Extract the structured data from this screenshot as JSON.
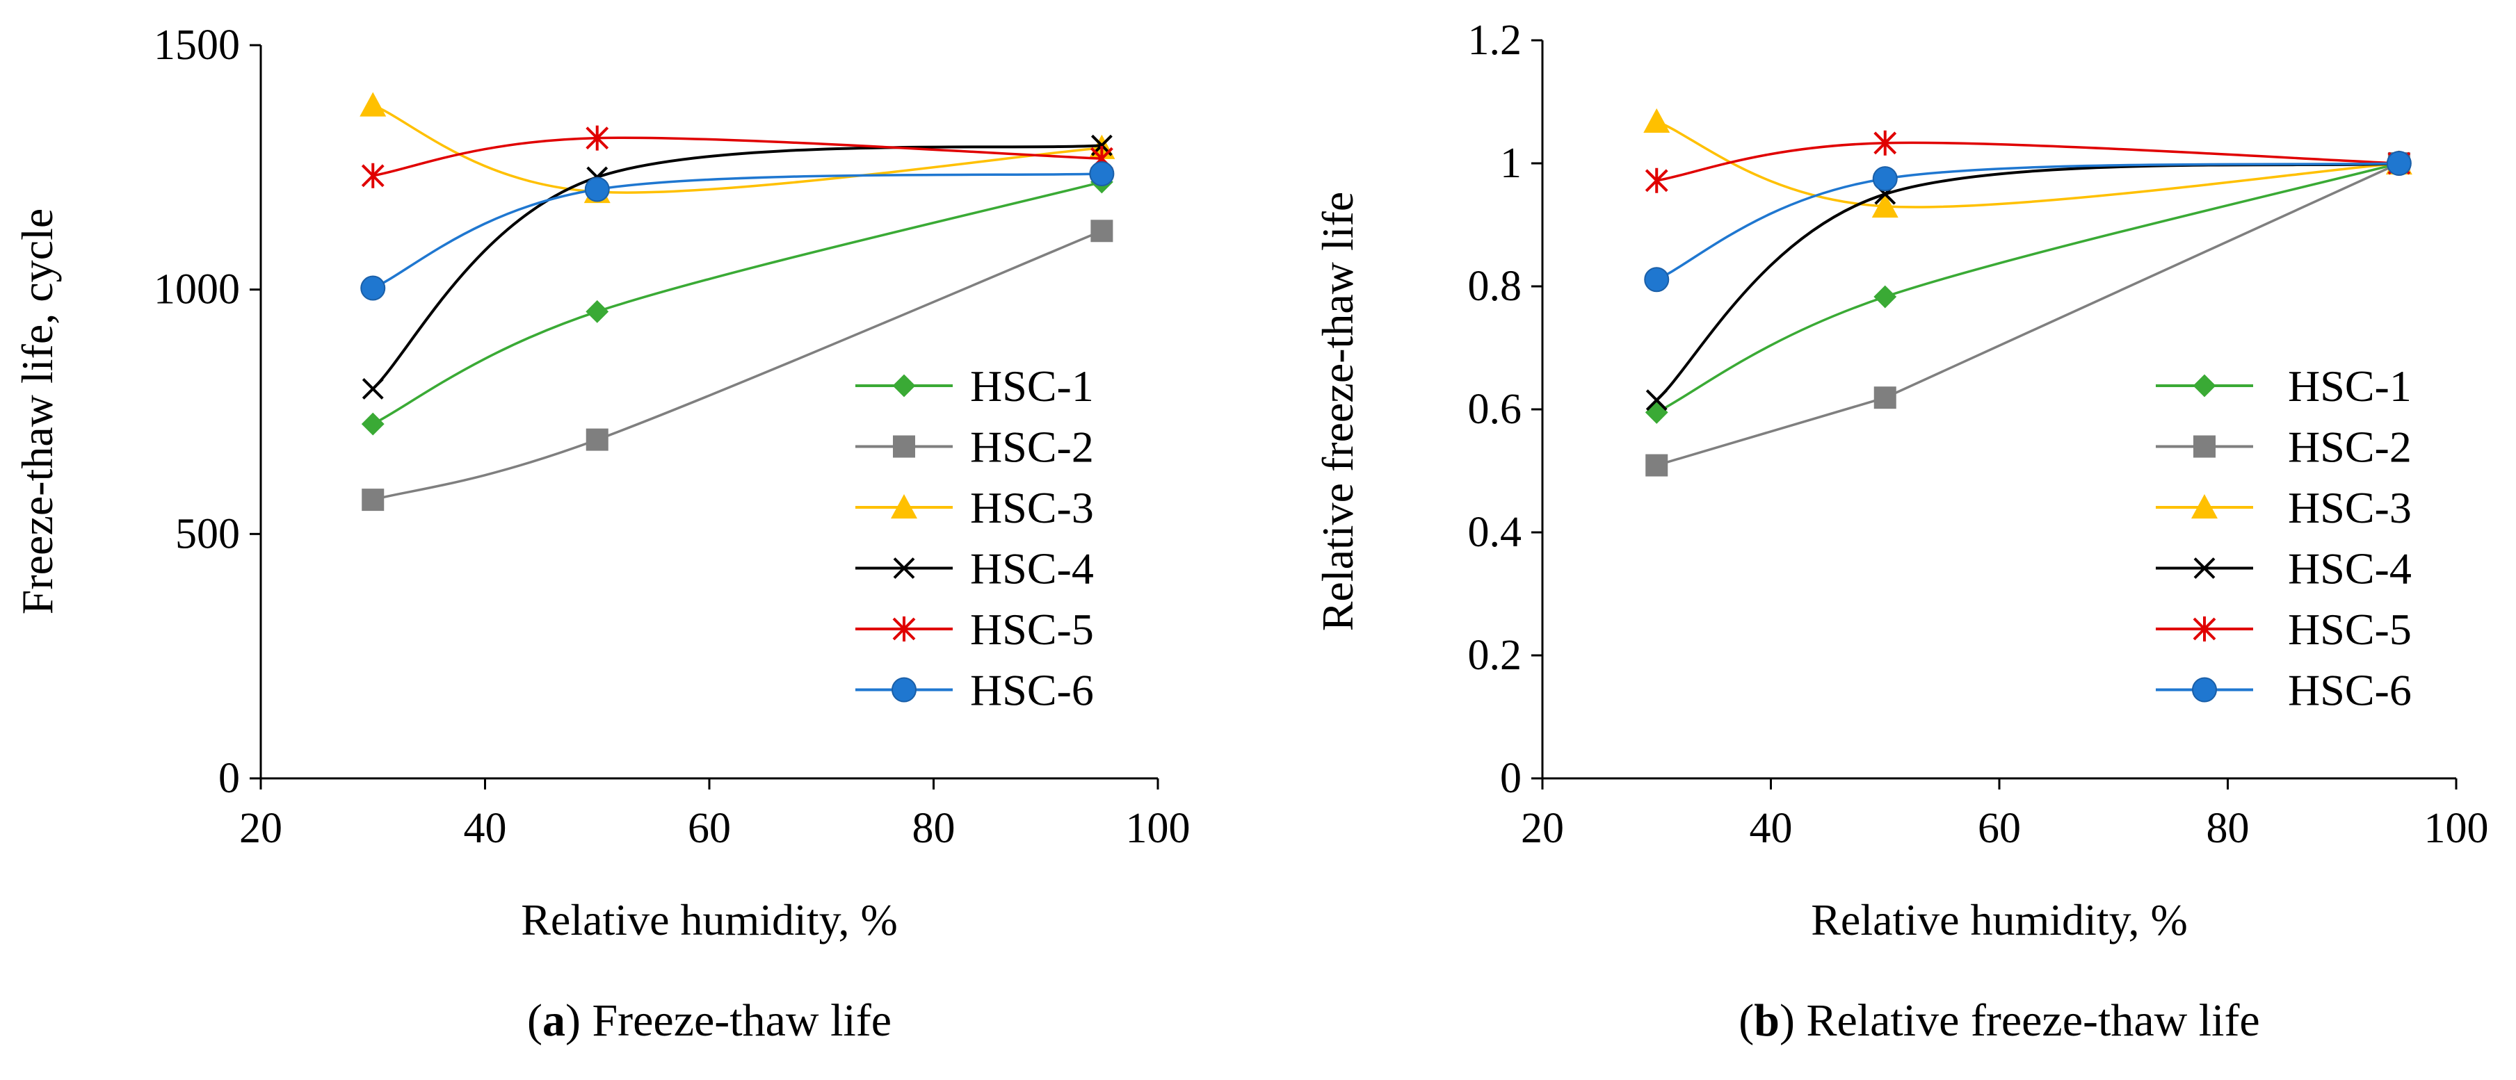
{
  "chart_data": [
    {
      "type": "line",
      "title": "",
      "caption": {
        "open": "(",
        "letter": "a",
        "close": ")",
        "text": "Freeze-thaw life"
      },
      "xlabel": "Relative humidity, %",
      "ylabel": "Freeze-thaw life, cycle",
      "xlim": [
        20,
        100
      ],
      "ylim": [
        0,
        1500
      ],
      "xticks": [
        20,
        40,
        60,
        80,
        100
      ],
      "xtick_labels": [
        "20",
        "40",
        "60",
        "80",
        "100"
      ],
      "yticks": [
        0,
        500,
        1000,
        1500
      ],
      "ytick_labels": [
        "0",
        "500",
        "1000",
        "1500"
      ],
      "grid": false,
      "legend_position": "bottom-right",
      "x": [
        30,
        50,
        95
      ],
      "series": [
        {
          "name": "HSC-1",
          "values": [
            725,
            955,
            1220
          ],
          "color": "#3aaa35",
          "marker": "diamond",
          "smooth": true
        },
        {
          "name": "HSC-2",
          "values": [
            570,
            693,
            1120
          ],
          "color": "#7f7f7f",
          "marker": "square",
          "smooth": true
        },
        {
          "name": "HSC-3",
          "values": [
            1377,
            1200,
            1290
          ],
          "color": "#ffc000",
          "marker": "triangle",
          "smooth": true
        },
        {
          "name": "HSC-4",
          "values": [
            797,
            1230,
            1295
          ],
          "color": "#000000",
          "marker": "x",
          "smooth": true
        },
        {
          "name": "HSC-5",
          "values": [
            1233,
            1310,
            1268
          ],
          "color": "#e00000",
          "marker": "star",
          "smooth": true
        },
        {
          "name": "HSC-6",
          "values": [
            1003,
            1205,
            1237
          ],
          "color": "#1f77d0",
          "marker": "circle",
          "smooth": true
        }
      ]
    },
    {
      "type": "line",
      "title": "",
      "caption": {
        "open": "(",
        "letter": "b",
        "close": ")",
        "text": "Relative freeze-thaw life"
      },
      "xlabel": "Relative humidity, %",
      "ylabel": "Relative freeze-thaw life",
      "xlim": [
        20,
        100
      ],
      "ylim": [
        0,
        1.2
      ],
      "xticks": [
        20,
        40,
        60,
        80,
        100
      ],
      "xtick_labels": [
        "20",
        "40",
        "60",
        "80",
        "100"
      ],
      "yticks": [
        0,
        0.2,
        0.4,
        0.6,
        0.8,
        1.0,
        1.2
      ],
      "ytick_labels": [
        "0",
        "0.2",
        "0.4",
        "0.6",
        "0.8",
        "1",
        "1.2"
      ],
      "grid": false,
      "legend_position": "bottom-right",
      "x": [
        30,
        50,
        95
      ],
      "series": [
        {
          "name": "HSC-1",
          "values": [
            0.595,
            0.783,
            1.0
          ],
          "color": "#3aaa35",
          "marker": "diamond",
          "smooth": true
        },
        {
          "name": "HSC-2",
          "values": [
            0.509,
            0.619,
            1.0
          ],
          "color": "#7f7f7f",
          "marker": "square",
          "smooth": false
        },
        {
          "name": "HSC-3",
          "values": [
            1.068,
            0.93,
            1.0
          ],
          "color": "#ffc000",
          "marker": "triangle",
          "smooth": true
        },
        {
          "name": "HSC-4",
          "values": [
            0.615,
            0.95,
            1.0
          ],
          "color": "#000000",
          "marker": "x",
          "smooth": true
        },
        {
          "name": "HSC-5",
          "values": [
            0.972,
            1.033,
            1.0
          ],
          "color": "#e00000",
          "marker": "star",
          "smooth": true
        },
        {
          "name": "HSC-6",
          "values": [
            0.811,
            0.975,
            1.0
          ],
          "color": "#1f77d0",
          "marker": "circle",
          "smooth": true
        }
      ]
    }
  ]
}
